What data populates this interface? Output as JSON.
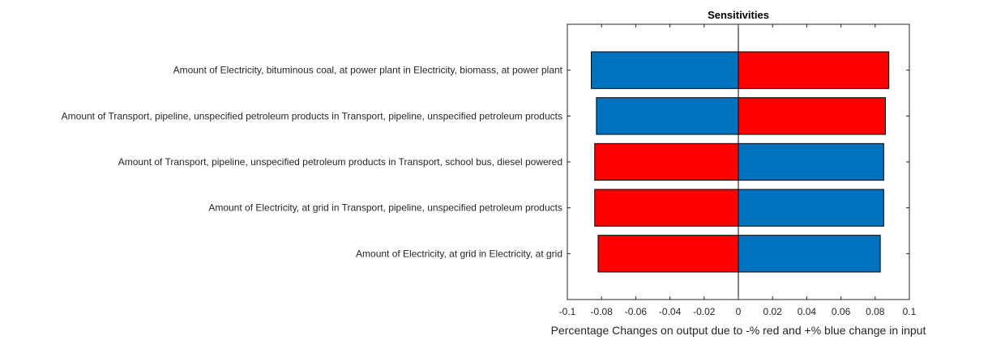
{
  "chart_data": {
    "type": "bar",
    "orientation": "horizontal",
    "title": "Sensitivities",
    "xlabel": "Percentage Changes on output due to -% red and +% blue change in input",
    "ylabel": "",
    "xlim": [
      -0.1,
      0.1
    ],
    "xticks": [
      "-0.1",
      "-0.08",
      "-0.06",
      "-0.04",
      "-0.02",
      "0",
      "0.02",
      "0.04",
      "0.06",
      "0.08",
      "0.1"
    ],
    "grid": false,
    "legend": "none",
    "categories": [
      "Amount of Electricity, bituminous coal, at power plant in Electricity, biomass, at power plant",
      "Amount of Transport, pipeline, unspecified petroleum products in Transport, pipeline, unspecified petroleum products",
      "Amount of Transport, pipeline, unspecified petroleum products in Transport, school bus, diesel powered",
      "Amount of Electricity, at grid in Transport, pipeline, unspecified petroleum products",
      "Amount of Electricity, at grid in Electricity, at grid"
    ],
    "series": [
      {
        "color": "#ff0000",
        "values": [
          0.088,
          0.086,
          -0.084,
          -0.084,
          -0.082
        ]
      },
      {
        "color": "#0072bd",
        "values": [
          -0.086,
          -0.083,
          0.085,
          0.085,
          0.083
        ]
      }
    ]
  }
}
